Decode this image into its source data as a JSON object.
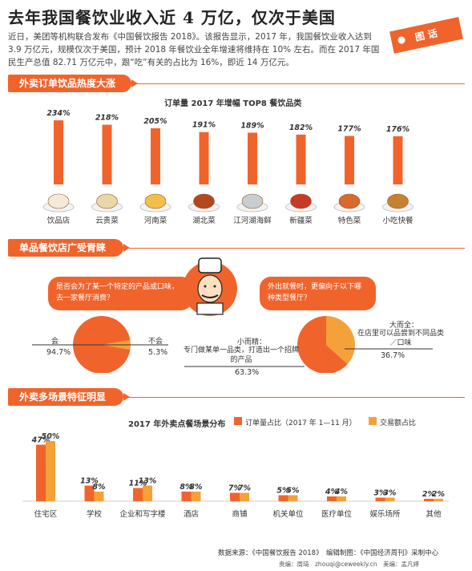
{
  "header": {
    "title": "去年我国餐饮业收入近 4 万亿，仅次于美国",
    "tag": "图 话",
    "intro": "近日，美团等机构联合发布《中国餐饮报告 2018》。该报告显示，2017 年，我国餐饮业收入达到 3.9 万亿元，规模仅次于美国，预计 2018 年餐饮业全年增速将维持在 10% 左右。而在 2017 年国民生产总值 82.71 万亿元中，跟“吃”有关的占比为 16%，即近 14 万亿元。"
  },
  "section1": {
    "heading": "外卖订单饮品热度大涨",
    "chart_title": "订单量 2017 年增幅 TOP8 餐饮品类"
  },
  "section2": {
    "heading": "单品餐饮店广受青睐",
    "left_bubble": "是否会为了某一个特定的产品或口味，去一家餐厅消费？",
    "right_bubble": "外出就餐时，更偏向于以下哪种类型餐厅？",
    "left_pie": {
      "yes_label": "会",
      "yes_value": "94.7%",
      "no_label": "不会",
      "no_value": "5.3%"
    },
    "right_pie": {
      "small_label": "小而精：",
      "small_desc": "专门做某单一品类，打造出一个招牌的产品",
      "small_value": "63.3%",
      "big_label": "大而全：",
      "big_desc": "在店里可以品尝到不同品类／口味",
      "big_value": "36.7%"
    }
  },
  "section3": {
    "heading": "外卖多场景特征明显",
    "chart_title": "2017 年外卖点餐场景分布",
    "legend": [
      "订单量占比（2017 年 1—11 月）",
      "交易额占比"
    ]
  },
  "footer": {
    "source": "数据来源：《中国餐饮报告 2018》　编辑制图：《中国经济周刊》采制中心",
    "credits": "责编：周琦　zhouqi@ceweekly.cn　美编：孟凡婷"
  },
  "colors": {
    "accent": "#f0642c",
    "accent2": "#f4a13a"
  },
  "chart_data": [
    {
      "type": "bar",
      "title": "订单量 2017 年增幅 TOP8 餐饮品类",
      "categories": [
        "饮品店",
        "云贵菜",
        "河南菜",
        "湖北菜",
        "江河湖海鲜",
        "新疆菜",
        "特色菜",
        "小吃快餐"
      ],
      "values": [
        234,
        218,
        205,
        191,
        189,
        182,
        177,
        176
      ],
      "value_labels": [
        "234%",
        "218%",
        "205%",
        "191%",
        "189%",
        "182%",
        "177%",
        "176%"
      ],
      "unit": "%"
    },
    {
      "type": "pie",
      "labels": [
        "会",
        "不会"
      ],
      "values": [
        94.7,
        5.3
      ]
    },
    {
      "type": "pie",
      "labels": [
        "小而精",
        "大而全"
      ],
      "values": [
        63.3,
        36.7
      ]
    },
    {
      "type": "bar",
      "title": "2017 年外卖点餐场景分布",
      "categories": [
        "住宅区",
        "学校",
        "企业和写字楼",
        "酒店",
        "商铺",
        "机关单位",
        "医疗单位",
        "娱乐场所",
        "其他"
      ],
      "series": [
        {
          "name": "订单量占比（2017 年 1—11 月）",
          "values": [
            47,
            13,
            11,
            8,
            7,
            5,
            4,
            3,
            2
          ],
          "labels": [
            "47%",
            "13%",
            "11%",
            "8%",
            "7%",
            "5%",
            "4%",
            "3%",
            "2%"
          ]
        },
        {
          "name": "交易额占比",
          "values": [
            50,
            8,
            13,
            8,
            7,
            5,
            4,
            3,
            2
          ],
          "labels": [
            "50%",
            "8%",
            "13%",
            "8%",
            "7%",
            "5%",
            "4%",
            "3%",
            "2%"
          ]
        }
      ]
    }
  ]
}
